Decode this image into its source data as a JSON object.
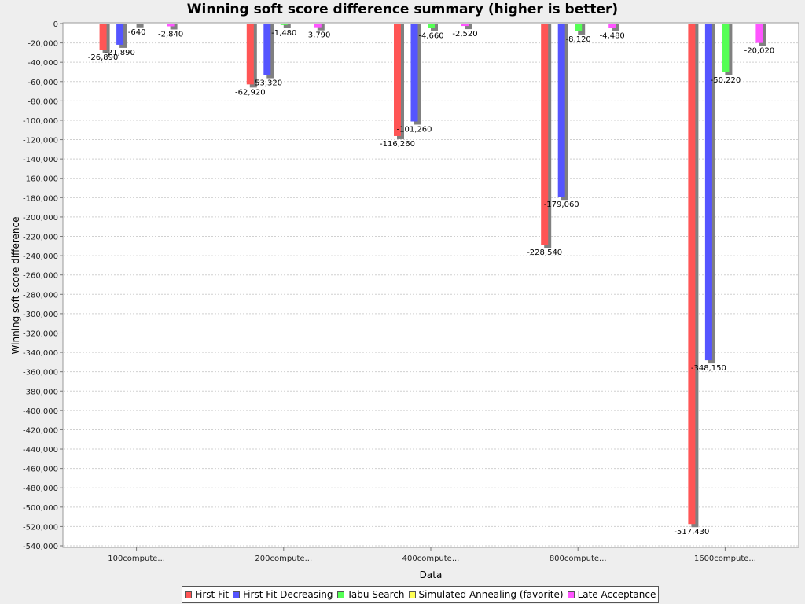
{
  "chart_data": {
    "type": "bar",
    "title": "Winning soft score difference summary (higher is better)",
    "xlabel": "Data",
    "ylabel": "Winning soft score difference",
    "categories": [
      "100compute...",
      "200compute...",
      "400compute...",
      "800compute...",
      "1600compute..."
    ],
    "ylim": [
      -540000,
      0
    ],
    "ytick_step": 20000,
    "grid": true,
    "legend_position": "bottom",
    "series": [
      {
        "name": "First Fit",
        "color": "#ff5555",
        "values": [
          -26890,
          -62920,
          -116260,
          -228540,
          -517430
        ],
        "labels": [
          "-26,890",
          "-62,920",
          "-116,260",
          "-228,540",
          "-517,430"
        ]
      },
      {
        "name": "First Fit Decreasing",
        "color": "#5555ff",
        "values": [
          -21890,
          -53320,
          -101260,
          -179060,
          -348150
        ],
        "labels": [
          "-21,890",
          "-53,320",
          "-101,260",
          "-179,060",
          "-348,150"
        ]
      },
      {
        "name": "Tabu Search",
        "color": "#55ff55",
        "values": [
          -640,
          -1480,
          -4660,
          -8120,
          -50220
        ],
        "labels": [
          "-640",
          "-1,480",
          "-4,660",
          "-8,120",
          "-50,220"
        ]
      },
      {
        "name": "Simulated Annealing (favorite)",
        "color": "#ffff55",
        "values": [
          0,
          0,
          0,
          0,
          0
        ],
        "labels": [
          "",
          "",
          "",
          "",
          ""
        ]
      },
      {
        "name": "Late Acceptance",
        "color": "#ff55ff",
        "values": [
          -2840,
          -3790,
          -2520,
          -4480,
          -20020
        ],
        "labels": [
          "-2,840",
          "-3,790",
          "-2,520",
          "-4,480",
          "-20,020"
        ]
      }
    ]
  }
}
